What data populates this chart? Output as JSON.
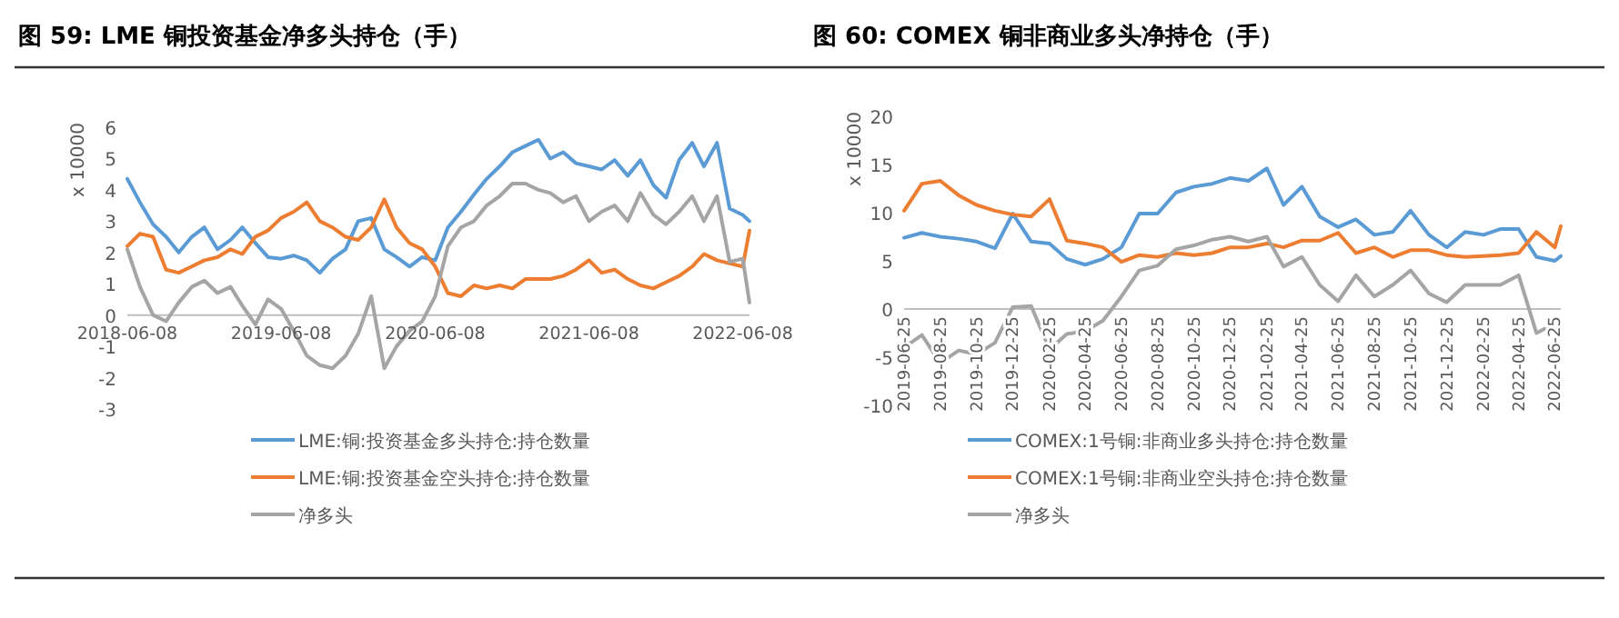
{
  "chart_data": [
    {
      "type": "line",
      "title": "图 59:  LME 铜投资基金净多头持仓（手）",
      "ylabel": "x 10000",
      "xlim": [
        "2018-06-08",
        "2022-06-24"
      ],
      "ylim": [
        -3,
        6
      ],
      "yticks": [
        -3,
        -2,
        -1,
        0,
        1,
        2,
        3,
        4,
        5,
        6
      ],
      "xticks": [
        "2018-06-08",
        "2019-06-08",
        "2020-06-08",
        "2021-06-08",
        "2022-06-08"
      ],
      "grid": false,
      "legend": "bottom",
      "x": [
        "2018-06-08",
        "2018-07-08",
        "2018-08-08",
        "2018-09-08",
        "2018-10-08",
        "2018-11-08",
        "2018-12-08",
        "2019-01-08",
        "2019-02-08",
        "2019-03-08",
        "2019-04-08",
        "2019-05-08",
        "2019-06-08",
        "2019-07-08",
        "2019-08-08",
        "2019-09-08",
        "2019-10-08",
        "2019-11-08",
        "2019-12-08",
        "2020-01-08",
        "2020-02-08",
        "2020-03-08",
        "2020-04-08",
        "2020-05-08",
        "2020-06-08",
        "2020-07-08",
        "2020-08-08",
        "2020-09-08",
        "2020-10-08",
        "2020-11-08",
        "2020-12-08",
        "2021-01-08",
        "2021-02-08",
        "2021-03-08",
        "2021-04-08",
        "2021-05-08",
        "2021-06-08",
        "2021-07-08",
        "2021-08-08",
        "2021-09-08",
        "2021-10-08",
        "2021-11-08",
        "2021-12-08",
        "2022-01-08",
        "2022-02-08",
        "2022-03-08",
        "2022-04-08",
        "2022-05-08",
        "2022-06-08",
        "2022-06-24"
      ],
      "series": [
        {
          "name": "LME:铜:投资基金多头持仓:持仓数量",
          "color": "#5b9bd5",
          "values": [
            4.35,
            3.6,
            2.9,
            2.5,
            2.0,
            2.5,
            2.8,
            2.1,
            2.4,
            2.8,
            2.3,
            1.85,
            1.8,
            1.9,
            1.75,
            1.35,
            1.8,
            2.1,
            3.0,
            3.1,
            2.1,
            1.85,
            1.55,
            1.85,
            1.75,
            2.8,
            3.3,
            3.85,
            4.35,
            4.75,
            5.2,
            5.4,
            5.6,
            5.0,
            5.2,
            4.85,
            4.75,
            4.65,
            4.95,
            4.45,
            4.95,
            4.15,
            3.75,
            4.95,
            5.5,
            4.75,
            5.5,
            3.4,
            3.2,
            3.0
          ]
        },
        {
          "name": "LME:铜:投资基金空头持仓:持仓数量",
          "color": "#ed7d31",
          "values": [
            2.2,
            2.6,
            2.5,
            1.45,
            1.35,
            1.55,
            1.75,
            1.85,
            2.1,
            1.95,
            2.5,
            2.7,
            3.1,
            3.3,
            3.6,
            3.0,
            2.8,
            2.5,
            2.4,
            2.8,
            3.7,
            2.8,
            2.3,
            2.1,
            1.55,
            0.7,
            0.6,
            0.95,
            0.85,
            0.95,
            0.85,
            1.15,
            1.15,
            1.15,
            1.25,
            1.45,
            1.75,
            1.35,
            1.45,
            1.15,
            0.95,
            0.85,
            1.05,
            1.25,
            1.55,
            1.95,
            1.75,
            1.65,
            1.55,
            2.7
          ]
        },
        {
          "name": "净多头",
          "color": "#a5a5a5",
          "values": [
            2.1,
            0.9,
            0.0,
            -0.2,
            0.4,
            0.9,
            1.1,
            0.7,
            0.9,
            0.3,
            -0.3,
            0.5,
            0.2,
            -0.5,
            -1.3,
            -1.6,
            -1.7,
            -1.3,
            -0.6,
            0.6,
            -1.7,
            -1.0,
            -0.5,
            -0.2,
            0.6,
            2.2,
            2.8,
            3.0,
            3.5,
            3.8,
            4.2,
            4.2,
            4.0,
            3.9,
            3.6,
            3.8,
            3.0,
            3.3,
            3.5,
            3.0,
            3.9,
            3.2,
            2.9,
            3.3,
            3.8,
            3.0,
            3.8,
            1.7,
            1.8,
            0.4
          ]
        }
      ]
    },
    {
      "type": "line",
      "title": "图 60:  COMEX 铜非商业多头净持仓（手）",
      "ylabel": "x 10000",
      "xlim": [
        "2019-06-25",
        "2022-07-05"
      ],
      "ylim": [
        -10,
        20
      ],
      "yticks": [
        -10,
        -5,
        0,
        5,
        10,
        15,
        20
      ],
      "xticks": [
        "2019-06-25",
        "2019-08-25",
        "2019-10-25",
        "2019-12-25",
        "2020-02-25",
        "2020-04-25",
        "2020-06-25",
        "2020-08-25",
        "2020-10-25",
        "2020-12-25",
        "2021-02-25",
        "2021-04-25",
        "2021-06-25",
        "2021-08-25",
        "2021-10-25",
        "2021-12-25",
        "2022-02-25",
        "2022-04-25",
        "2022-06-25"
      ],
      "grid": false,
      "legend": "bottom",
      "x": [
        "2019-06-25",
        "2019-07-25",
        "2019-08-25",
        "2019-09-25",
        "2019-10-25",
        "2019-11-25",
        "2019-12-25",
        "2020-01-25",
        "2020-02-25",
        "2020-03-25",
        "2020-04-25",
        "2020-05-25",
        "2020-06-25",
        "2020-07-25",
        "2020-08-25",
        "2020-09-25",
        "2020-10-25",
        "2020-11-25",
        "2020-12-25",
        "2021-01-25",
        "2021-02-25",
        "2021-03-25",
        "2021-04-25",
        "2021-05-25",
        "2021-06-25",
        "2021-07-25",
        "2021-08-25",
        "2021-09-25",
        "2021-10-25",
        "2021-11-25",
        "2021-12-25",
        "2022-01-25",
        "2022-02-25",
        "2022-03-25",
        "2022-04-25",
        "2022-05-25",
        "2022-06-25",
        "2022-07-05"
      ],
      "series": [
        {
          "name": "COMEX:1号铜:非商业多头持仓:持仓数量",
          "color": "#5b9bd5",
          "values": [
            7.4,
            7.9,
            7.5,
            7.3,
            7.0,
            6.3,
            9.9,
            7.0,
            6.8,
            5.2,
            4.6,
            5.2,
            6.4,
            9.9,
            9.9,
            12.1,
            12.7,
            13.0,
            13.6,
            13.3,
            14.6,
            10.8,
            12.7,
            9.6,
            8.5,
            9.3,
            7.7,
            8.0,
            10.2,
            7.7,
            6.4,
            8.0,
            7.7,
            8.3,
            8.3,
            5.4,
            5.0,
            5.5
          ]
        },
        {
          "name": "COMEX:1号铜:非商业空头持仓:持仓数量",
          "color": "#ed7d31",
          "values": [
            10.2,
            13.0,
            13.3,
            11.8,
            10.8,
            10.2,
            9.8,
            9.6,
            11.4,
            7.1,
            6.8,
            6.4,
            4.9,
            5.6,
            5.4,
            5.8,
            5.6,
            5.8,
            6.4,
            6.4,
            6.8,
            6.4,
            7.1,
            7.1,
            7.9,
            5.8,
            6.4,
            5.4,
            6.1,
            6.1,
            5.6,
            5.4,
            5.5,
            5.6,
            5.8,
            8.0,
            6.4,
            8.6
          ]
        },
        {
          "name": "净多头",
          "color": "#a5a5a5",
          "values": [
            -4.0,
            -2.7,
            -5.6,
            -4.3,
            -4.7,
            -3.5,
            0.2,
            0.3,
            -4.2,
            -2.6,
            -2.3,
            -1.2,
            1.3,
            4.0,
            4.5,
            6.2,
            6.6,
            7.2,
            7.5,
            7.0,
            7.5,
            4.4,
            5.4,
            2.5,
            0.8,
            3.5,
            1.3,
            2.5,
            4.0,
            1.6,
            0.7,
            2.5,
            2.5,
            2.5,
            3.5,
            -2.5,
            -1.5,
            -2.0
          ]
        }
      ]
    }
  ]
}
